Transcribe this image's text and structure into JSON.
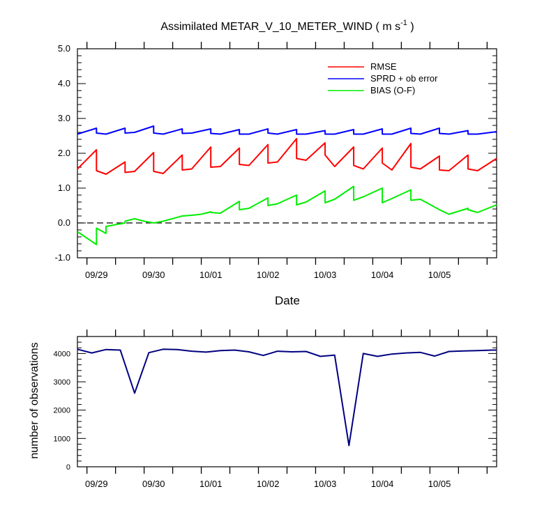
{
  "chart_data": [
    {
      "type": "line",
      "title": "Assimilated METAR_V_10_METER_WIND ( m s",
      "title_unit_superscript": "-1",
      "title_close": " )",
      "xlabel": "Date",
      "ylabel": "",
      "ylim": [
        -1.0,
        5.0
      ],
      "yticks": [
        -1.0,
        0.0,
        1.0,
        2.0,
        3.0,
        4.0,
        5.0
      ],
      "ytick_labels": [
        "-1.0",
        "0.0",
        "1.0",
        "2.0",
        "3.0",
        "4.0",
        "5.0"
      ],
      "xlim": [
        0,
        44
      ],
      "x_tick_positions": [
        2,
        8,
        14,
        20,
        26,
        32,
        38
      ],
      "x_tick_labels": [
        "09/29",
        "09/30",
        "10/01",
        "10/02",
        "10/03",
        "10/04",
        "10/05"
      ],
      "x_minor_step": 3,
      "reference_line": {
        "y": 0.0,
        "style": "dashed"
      },
      "legend": {
        "position": "top-right",
        "entries": [
          "RMSE",
          "SPRD + ob error",
          "BIAS (O-F)"
        ]
      },
      "series": [
        {
          "name": "RMSE",
          "color": "#ff0000",
          "x": [
            0,
            2,
            2,
            3,
            5,
            5,
            6,
            8,
            8,
            9,
            11,
            11,
            12,
            14,
            14,
            15,
            17,
            17,
            18,
            20,
            20,
            21,
            23,
            23,
            24,
            26,
            26,
            27,
            29,
            29,
            30,
            32,
            32,
            33,
            35,
            35,
            36,
            38,
            38,
            39,
            41,
            41,
            42,
            44
          ],
          "y": [
            1.55,
            2.1,
            1.5,
            1.4,
            1.75,
            1.45,
            1.48,
            2.02,
            1.48,
            1.42,
            1.95,
            1.52,
            1.55,
            2.18,
            1.6,
            1.62,
            2.15,
            1.68,
            1.65,
            2.25,
            1.72,
            1.75,
            2.42,
            1.85,
            1.8,
            2.3,
            1.95,
            1.62,
            2.18,
            1.65,
            1.55,
            2.15,
            1.72,
            1.52,
            2.28,
            1.6,
            1.55,
            1.92,
            1.52,
            1.5,
            1.95,
            1.55,
            1.5,
            1.85
          ]
        },
        {
          "name": "SPRD + ob error",
          "color": "#0000ff",
          "x": [
            0,
            2,
            2,
            3,
            5,
            5,
            6,
            8,
            8,
            9,
            11,
            11,
            12,
            14,
            14,
            15,
            17,
            17,
            18,
            20,
            20,
            21,
            23,
            23,
            24,
            26,
            26,
            27,
            29,
            29,
            30,
            32,
            32,
            33,
            35,
            35,
            36,
            38,
            38,
            39,
            41,
            41,
            42,
            44
          ],
          "y": [
            2.55,
            2.72,
            2.58,
            2.55,
            2.72,
            2.58,
            2.6,
            2.78,
            2.58,
            2.55,
            2.7,
            2.57,
            2.58,
            2.7,
            2.57,
            2.55,
            2.68,
            2.55,
            2.55,
            2.7,
            2.58,
            2.55,
            2.68,
            2.55,
            2.55,
            2.65,
            2.55,
            2.55,
            2.68,
            2.55,
            2.55,
            2.7,
            2.55,
            2.55,
            2.72,
            2.57,
            2.55,
            2.72,
            2.57,
            2.55,
            2.65,
            2.55,
            2.55,
            2.62
          ]
        },
        {
          "name": "BIAS (O-F)",
          "color": "#00ee00",
          "x": [
            0,
            2,
            2,
            3,
            3,
            5,
            5,
            6,
            7,
            8,
            9,
            11,
            12,
            13,
            14,
            14,
            15,
            17,
            17,
            18,
            20,
            20,
            21,
            23,
            23,
            24,
            26,
            26,
            27,
            29,
            29,
            30,
            32,
            32,
            33,
            35,
            35,
            36,
            38,
            38,
            39,
            41,
            41,
            42,
            44
          ],
          "y": [
            -0.25,
            -0.62,
            -0.15,
            -0.3,
            -0.1,
            0.0,
            0.05,
            0.12,
            0.05,
            0.0,
            0.05,
            0.2,
            0.22,
            0.25,
            0.32,
            0.3,
            0.28,
            0.62,
            0.38,
            0.42,
            0.72,
            0.5,
            0.55,
            0.8,
            0.52,
            0.6,
            0.92,
            0.58,
            0.68,
            1.05,
            0.65,
            0.75,
            1.0,
            0.58,
            0.7,
            0.95,
            0.65,
            0.68,
            0.38,
            0.38,
            0.25,
            0.42,
            0.38,
            0.3,
            0.52
          ]
        }
      ]
    },
    {
      "type": "line",
      "title": "",
      "xlabel": "",
      "ylabel": "number of observations",
      "ylim": [
        0,
        4600
      ],
      "yticks": [
        0,
        1000,
        2000,
        3000,
        4000
      ],
      "ytick_labels": [
        "0",
        "1000",
        "2000",
        "3000",
        "4000"
      ],
      "xlim": [
        0,
        44
      ],
      "x_tick_positions": [
        2,
        8,
        14,
        20,
        26,
        32,
        38
      ],
      "x_tick_labels": [
        "09/29",
        "09/30",
        "10/01",
        "10/02",
        "10/03",
        "10/04",
        "10/05"
      ],
      "x_minor_step": 3,
      "series": [
        {
          "name": "number of observations",
          "color": "#000080",
          "x": [
            0,
            1.5,
            3,
            4.5,
            6,
            7.5,
            9,
            10.5,
            12,
            13.5,
            15,
            16.5,
            18,
            19.5,
            21,
            22.5,
            24,
            25.5,
            27,
            28.5,
            30,
            31.5,
            33,
            34.5,
            36,
            37.5,
            39,
            40.5,
            42,
            43.5,
            44
          ],
          "y": [
            4150,
            4020,
            4140,
            4120,
            2600,
            4030,
            4150,
            4140,
            4080,
            4050,
            4100,
            4120,
            4060,
            3930,
            4080,
            4060,
            4070,
            3900,
            3940,
            750,
            4000,
            3900,
            3980,
            4020,
            4040,
            3910,
            4070,
            4090,
            4100,
            4120,
            4120
          ]
        }
      ]
    }
  ]
}
